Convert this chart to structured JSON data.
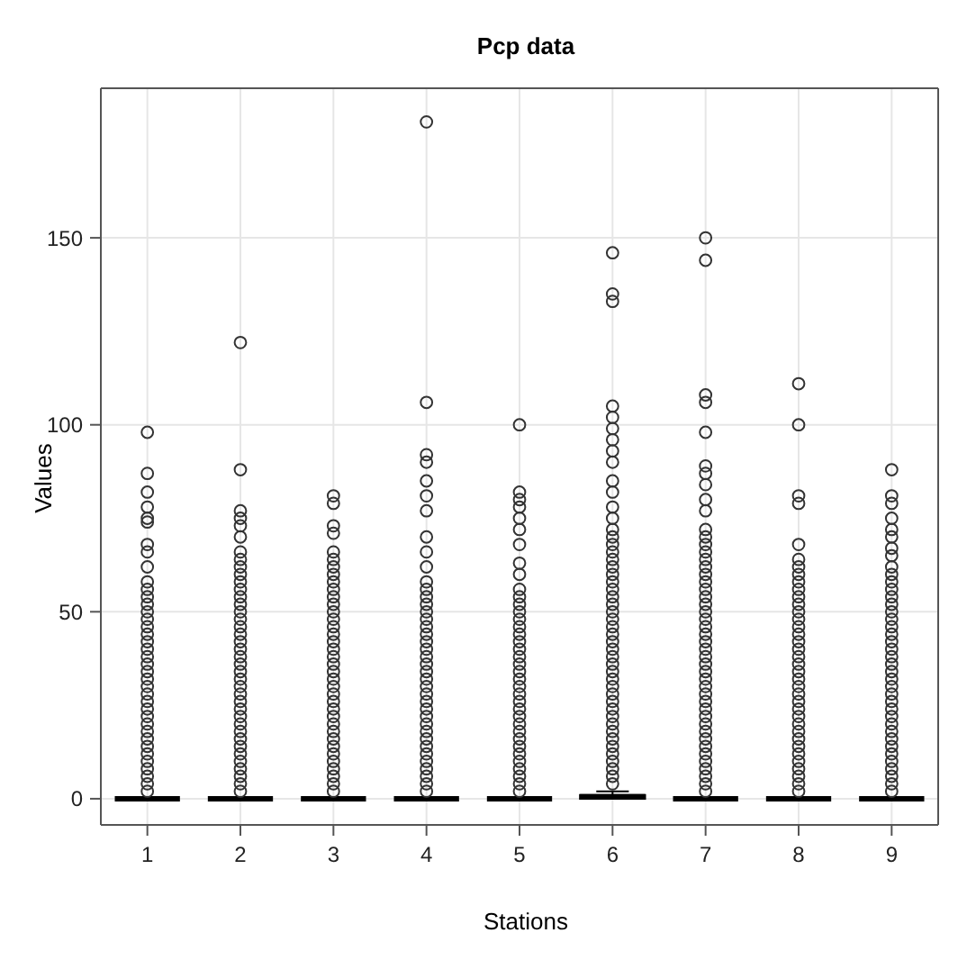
{
  "chart_data": {
    "type": "box",
    "title": "Pcp data",
    "xlabel": "Stations",
    "ylabel": "Values",
    "categories": [
      "1",
      "2",
      "3",
      "4",
      "5",
      "6",
      "7",
      "8",
      "9"
    ],
    "ylim": [
      -7,
      190
    ],
    "yticks": [
      0,
      50,
      100,
      150
    ],
    "grid": true,
    "color": "#000000",
    "boxes": [
      {
        "low": 0,
        "q1": 0,
        "median": 0,
        "q3": 0,
        "high": 0,
        "outliers": [
          2,
          4,
          6,
          8,
          10,
          12,
          14,
          16,
          18,
          20,
          22,
          24,
          26,
          28,
          30,
          32,
          34,
          36,
          38,
          40,
          42,
          44,
          46,
          48,
          50,
          52,
          54,
          56,
          58,
          62,
          66,
          68,
          74,
          75,
          78,
          82,
          87,
          98
        ]
      },
      {
        "low": 0,
        "q1": 0,
        "median": 0,
        "q3": 0,
        "high": 0,
        "outliers": [
          2,
          4,
          6,
          8,
          10,
          12,
          14,
          16,
          18,
          20,
          22,
          24,
          26,
          28,
          30,
          32,
          34,
          36,
          38,
          40,
          42,
          44,
          46,
          48,
          50,
          52,
          54,
          56,
          58,
          60,
          62,
          64,
          66,
          70,
          73,
          75,
          77,
          88,
          122
        ]
      },
      {
        "low": 0,
        "q1": 0,
        "median": 0,
        "q3": 0,
        "high": 0,
        "outliers": [
          2,
          4,
          6,
          8,
          10,
          12,
          14,
          16,
          18,
          20,
          22,
          24,
          26,
          28,
          30,
          32,
          34,
          36,
          38,
          40,
          42,
          44,
          46,
          48,
          50,
          52,
          54,
          56,
          58,
          60,
          62,
          64,
          66,
          71,
          73,
          79,
          81
        ]
      },
      {
        "low": 0,
        "q1": 0,
        "median": 0,
        "q3": 0,
        "high": 0,
        "outliers": [
          2,
          4,
          6,
          8,
          10,
          12,
          14,
          16,
          18,
          20,
          22,
          24,
          26,
          28,
          30,
          32,
          34,
          36,
          38,
          40,
          42,
          44,
          46,
          48,
          50,
          52,
          54,
          56,
          58,
          62,
          66,
          70,
          77,
          81,
          85,
          90,
          92,
          106,
          181
        ]
      },
      {
        "low": 0,
        "q1": 0,
        "median": 0,
        "q3": 0,
        "high": 0,
        "outliers": [
          2,
          4,
          6,
          8,
          10,
          12,
          14,
          16,
          18,
          20,
          22,
          24,
          26,
          28,
          30,
          32,
          34,
          36,
          38,
          40,
          42,
          44,
          46,
          48,
          50,
          52,
          54,
          56,
          60,
          63,
          68,
          72,
          75,
          78,
          80,
          82,
          100
        ]
      },
      {
        "low": 0,
        "q1": 0,
        "median": 0.5,
        "q3": 1,
        "high": 2,
        "outliers": [
          4,
          6,
          8,
          10,
          12,
          14,
          16,
          18,
          20,
          22,
          24,
          26,
          28,
          30,
          32,
          34,
          36,
          38,
          40,
          42,
          44,
          46,
          48,
          50,
          52,
          54,
          56,
          58,
          60,
          62,
          64,
          66,
          68,
          70,
          72,
          75,
          78,
          82,
          85,
          90,
          93,
          96,
          99,
          102,
          105,
          133,
          135,
          146
        ]
      },
      {
        "low": 0,
        "q1": 0,
        "median": 0,
        "q3": 0,
        "high": 0,
        "outliers": [
          2,
          4,
          6,
          8,
          10,
          12,
          14,
          16,
          18,
          20,
          22,
          24,
          26,
          28,
          30,
          32,
          34,
          36,
          38,
          40,
          42,
          44,
          46,
          48,
          50,
          52,
          54,
          56,
          58,
          60,
          62,
          64,
          66,
          68,
          70,
          72,
          77,
          80,
          84,
          87,
          89,
          98,
          106,
          108,
          144,
          150
        ]
      },
      {
        "low": 0,
        "q1": 0,
        "median": 0,
        "q3": 0,
        "high": 0,
        "outliers": [
          2,
          4,
          6,
          8,
          10,
          12,
          14,
          16,
          18,
          20,
          22,
          24,
          26,
          28,
          30,
          32,
          34,
          36,
          38,
          40,
          42,
          44,
          46,
          48,
          50,
          52,
          54,
          56,
          58,
          60,
          62,
          64,
          68,
          79,
          81,
          100,
          111
        ]
      },
      {
        "low": 0,
        "q1": 0,
        "median": 0,
        "q3": 0,
        "high": 0,
        "outliers": [
          2,
          4,
          6,
          8,
          10,
          12,
          14,
          16,
          18,
          20,
          22,
          24,
          26,
          28,
          30,
          32,
          34,
          36,
          38,
          40,
          42,
          44,
          46,
          48,
          50,
          52,
          54,
          56,
          58,
          60,
          62,
          65,
          67,
          70,
          72,
          75,
          79,
          81,
          88
        ]
      }
    ]
  }
}
